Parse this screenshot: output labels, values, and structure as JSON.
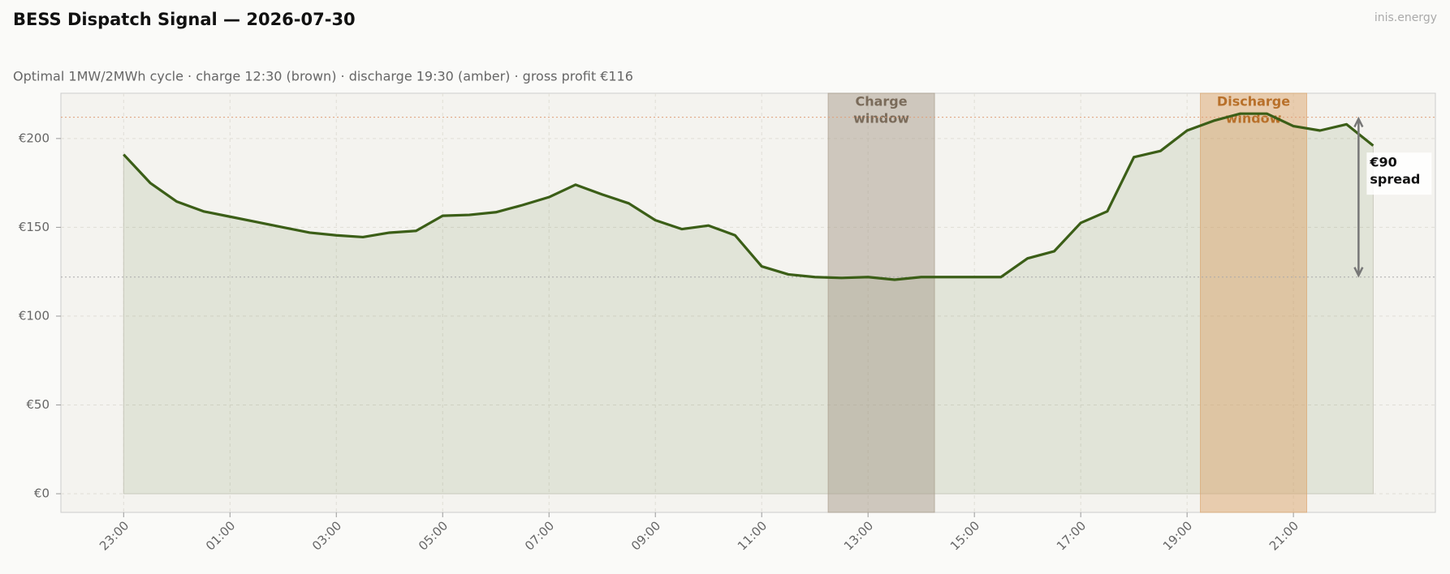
{
  "chart_data": {
    "type": "line",
    "title": "BESS Dispatch Signal — 2026-07-30",
    "subtitle": "Optimal 1MW/2MWh cycle  ·  charge 12:30 (brown)  ·  discharge 19:30 (amber)  ·  gross profit €116",
    "watermark": "inis.energy",
    "x": [
      0,
      0.5,
      1,
      1.5,
      2,
      2.5,
      3,
      3.5,
      4,
      4.5,
      5,
      5.5,
      6,
      6.5,
      7,
      7.5,
      8,
      8.5,
      9,
      9.5,
      10,
      10.5,
      11,
      11.5,
      12,
      12.5,
      13,
      13.5,
      14,
      14.5,
      15,
      15.5,
      16,
      16.5,
      17,
      17.5,
      18,
      18.5,
      19,
      19.5,
      20,
      20.5,
      21,
      21.5,
      22,
      22.5,
      23,
      23.5
    ],
    "series": [
      {
        "name": "Price",
        "color": "#3b5e17",
        "values": [
          191,
          175,
          164.5,
          159,
          156,
          153,
          150,
          147,
          145.5,
          144.5,
          147,
          148,
          156.5,
          157,
          158.5,
          162.5,
          167,
          174,
          168.5,
          163.5,
          154,
          149,
          151,
          145.5,
          128,
          123.5,
          122,
          121.5,
          122,
          120.5,
          122,
          122,
          122,
          122,
          132.5,
          136.5,
          152.5,
          159,
          189.5,
          193,
          204.5,
          210,
          214,
          214,
          207,
          204.5,
          208,
          196
        ]
      }
    ],
    "xlim": [
      -1.18,
      24.67
    ],
    "xticks": [
      {
        "value": 0,
        "label": "23:00"
      },
      {
        "value": 2,
        "label": "01:00"
      },
      {
        "value": 4,
        "label": "03:00"
      },
      {
        "value": 6,
        "label": "05:00"
      },
      {
        "value": 8,
        "label": "07:00"
      },
      {
        "value": 10,
        "label": "09:00"
      },
      {
        "value": 12,
        "label": "11:00"
      },
      {
        "value": 14,
        "label": "13:00"
      },
      {
        "value": 16,
        "label": "15:00"
      },
      {
        "value": 18,
        "label": "17:00"
      },
      {
        "value": 20,
        "label": "19:00"
      },
      {
        "value": 22,
        "label": "21:00"
      }
    ],
    "ylim": [
      -10.5,
      225.5
    ],
    "yticks": [
      {
        "value": 0,
        "label": "€0"
      },
      {
        "value": 50,
        "label": "€50"
      },
      {
        "value": 100,
        "label": "€100"
      },
      {
        "value": 150,
        "label": "€150"
      },
      {
        "value": 200,
        "label": "€200"
      }
    ],
    "grid": true,
    "windows": [
      {
        "label": [
          "Charge",
          "window"
        ],
        "start": 13.25,
        "end": 15.25,
        "color": "#a89c8c",
        "text_color": "#7a6b5a"
      },
      {
        "label": [
          "Discharge",
          "window"
        ],
        "start": 20.25,
        "end": 22.25,
        "color": "#dba56e",
        "text_color": "#b8702a"
      }
    ],
    "reference_lines": [
      {
        "value": 212,
        "color": "#e0a07a"
      },
      {
        "value": 122,
        "color": "#aaaaaa"
      }
    ],
    "spread_label": [
      "€90",
      "spread"
    ],
    "spread": 90
  }
}
